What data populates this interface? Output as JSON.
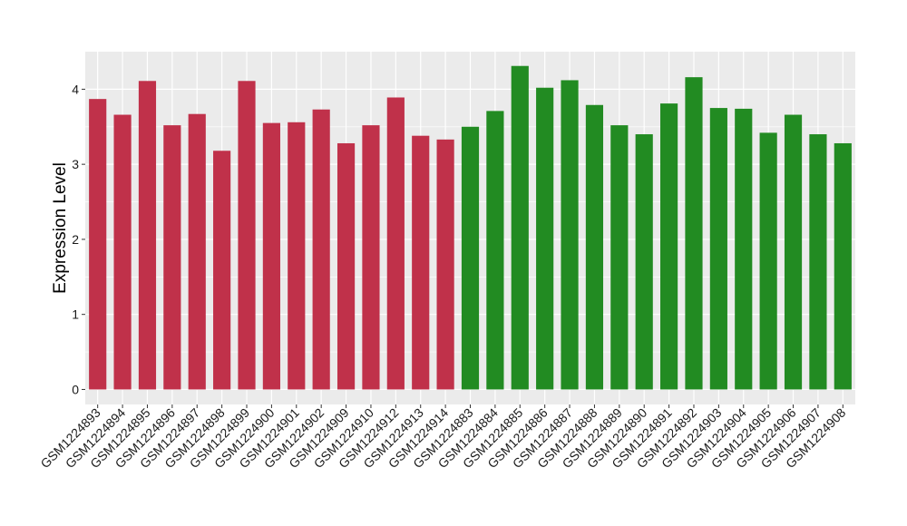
{
  "chart_data": {
    "type": "bar",
    "title": "",
    "xlabel": "",
    "ylabel": "Expression Level",
    "ylim": [
      -0.2,
      4.5
    ],
    "yticks": [
      0,
      1,
      2,
      3,
      4
    ],
    "grid": true,
    "background": "#EBEBEB",
    "grid_color": "#FFFFFF",
    "colors": [
      "#C0314A",
      "#228B22"
    ],
    "categories": [
      "GSM1224893",
      "GSM1224894",
      "GSM1224895",
      "GSM1224896",
      "GSM1224897",
      "GSM1224898",
      "GSM1224899",
      "GSM1224900",
      "GSM1224901",
      "GSM1224902",
      "GSM1224909",
      "GSM1224910",
      "GSM1224912",
      "GSM1224913",
      "GSM1224914",
      "GSM1224883",
      "GSM1224884",
      "GSM1224885",
      "GSM1224886",
      "GSM1224887",
      "GSM1224888",
      "GSM1224889",
      "GSM1224890",
      "GSM1224891",
      "GSM1224892",
      "GSM1224903",
      "GSM1224904",
      "GSM1224905",
      "GSM1224906",
      "GSM1224907",
      "GSM1224908"
    ],
    "values": [
      3.87,
      3.66,
      4.11,
      3.52,
      3.67,
      3.18,
      4.11,
      3.55,
      3.56,
      3.73,
      3.28,
      3.52,
      3.89,
      3.38,
      3.33,
      3.5,
      3.71,
      4.31,
      4.02,
      4.12,
      3.79,
      3.52,
      3.4,
      3.81,
      4.16,
      3.75,
      3.74,
      3.42,
      3.66,
      3.4,
      3.28
    ],
    "group": [
      0,
      0,
      0,
      0,
      0,
      0,
      0,
      0,
      0,
      0,
      0,
      0,
      0,
      0,
      0,
      1,
      1,
      1,
      1,
      1,
      1,
      1,
      1,
      1,
      1,
      1,
      1,
      1,
      1,
      1,
      1
    ]
  }
}
